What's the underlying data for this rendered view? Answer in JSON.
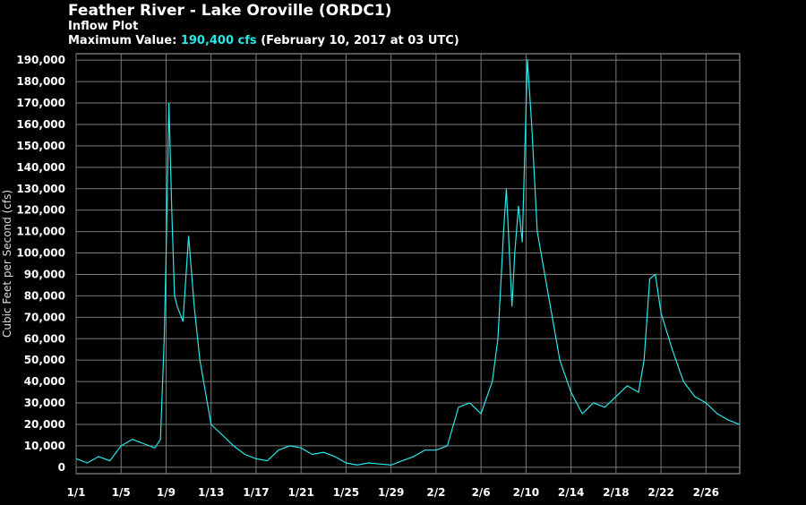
{
  "header": {
    "title": "Feather River - Lake Oroville (ORDC1)",
    "subtitle": "Inflow Plot",
    "max_label": "Maximum Value:",
    "max_value": "190,400 cfs",
    "max_when": "(February 10, 2017 at 03 UTC)"
  },
  "chart_data": {
    "type": "line",
    "title": "Feather River - Lake Oroville (ORDC1)",
    "subtitle": "Inflow Plot",
    "ylabel": "Cubic Feet per Second (cfs)",
    "xlabel": "",
    "ylim": [
      -3000,
      193000
    ],
    "xlim": [
      "2017-01-01",
      "2017-03-01"
    ],
    "grid": true,
    "line_color": "#26e8e8",
    "yticks": [
      "0",
      "10,000",
      "20,000",
      "30,000",
      "40,000",
      "50,000",
      "60,000",
      "70,000",
      "80,000",
      "90,000",
      "100,000",
      "110,000",
      "120,000",
      "130,000",
      "140,000",
      "150,000",
      "160,000",
      "170,000",
      "180,000",
      "190,000"
    ],
    "xticks": [
      "1/1",
      "1/5",
      "1/9",
      "1/13",
      "1/17",
      "1/21",
      "1/25",
      "1/29",
      "2/2",
      "2/6",
      "2/10",
      "2/14",
      "2/18",
      "2/22",
      "2/26"
    ],
    "series": [
      {
        "values": [
          [
            "2017-01-01",
            4000
          ],
          [
            "2017-01-02",
            2000
          ],
          [
            "2017-01-03",
            5000
          ],
          [
            "2017-01-04",
            3000
          ],
          [
            "2017-01-05",
            10000
          ],
          [
            "2017-01-06",
            13000
          ],
          [
            "2017-01-07",
            11000
          ],
          [
            "2017-01-08",
            9000
          ],
          [
            "2017-01-08T12",
            13000
          ],
          [
            "2017-01-08T20",
            60000
          ],
          [
            "2017-01-09",
            100000
          ],
          [
            "2017-01-09T06",
            170000
          ],
          [
            "2017-01-09T12",
            120000
          ],
          [
            "2017-01-09T18",
            80000
          ],
          [
            "2017-01-10",
            75000
          ],
          [
            "2017-01-10T12",
            68000
          ],
          [
            "2017-01-11",
            108000
          ],
          [
            "2017-01-11T12",
            75000
          ],
          [
            "2017-01-12",
            50000
          ],
          [
            "2017-01-13",
            20000
          ],
          [
            "2017-01-14",
            15000
          ],
          [
            "2017-01-15",
            10000
          ],
          [
            "2017-01-16",
            6000
          ],
          [
            "2017-01-17",
            4000
          ],
          [
            "2017-01-18",
            3000
          ],
          [
            "2017-01-19",
            8000
          ],
          [
            "2017-01-20",
            10000
          ],
          [
            "2017-01-21",
            9000
          ],
          [
            "2017-01-22",
            6000
          ],
          [
            "2017-01-23",
            7000
          ],
          [
            "2017-01-24",
            5000
          ],
          [
            "2017-01-25",
            2000
          ],
          [
            "2017-01-26",
            1000
          ],
          [
            "2017-01-27",
            2000
          ],
          [
            "2017-01-28",
            1500
          ],
          [
            "2017-01-29",
            1000
          ],
          [
            "2017-01-30",
            3000
          ],
          [
            "2017-01-31",
            5000
          ],
          [
            "2017-02-01",
            8000
          ],
          [
            "2017-02-02",
            8000
          ],
          [
            "2017-02-03",
            10000
          ],
          [
            "2017-02-04",
            28000
          ],
          [
            "2017-02-05",
            30000
          ],
          [
            "2017-02-06",
            25000
          ],
          [
            "2017-02-07",
            40000
          ],
          [
            "2017-02-07T12",
            60000
          ],
          [
            "2017-02-08",
            110000
          ],
          [
            "2017-02-08T06",
            130000
          ],
          [
            "2017-02-08T18",
            75000
          ],
          [
            "2017-02-09",
            100000
          ],
          [
            "2017-02-09T08",
            122000
          ],
          [
            "2017-02-09T16",
            105000
          ],
          [
            "2017-02-10T03",
            190400
          ],
          [
            "2017-02-10T12",
            160000
          ],
          [
            "2017-02-11",
            110000
          ],
          [
            "2017-02-12",
            80000
          ],
          [
            "2017-02-13",
            50000
          ],
          [
            "2017-02-14",
            35000
          ],
          [
            "2017-02-15",
            25000
          ],
          [
            "2017-02-16",
            30000
          ],
          [
            "2017-02-17",
            28000
          ],
          [
            "2017-02-18",
            33000
          ],
          [
            "2017-02-19",
            38000
          ],
          [
            "2017-02-20",
            35000
          ],
          [
            "2017-02-20T12",
            50000
          ],
          [
            "2017-02-21",
            88000
          ],
          [
            "2017-02-21T12",
            90000
          ],
          [
            "2017-02-22",
            72000
          ],
          [
            "2017-02-23",
            55000
          ],
          [
            "2017-02-24",
            40000
          ],
          [
            "2017-02-25",
            33000
          ],
          [
            "2017-02-26",
            30000
          ],
          [
            "2017-02-27",
            25000
          ],
          [
            "2017-02-28",
            22000
          ],
          [
            "2017-03-01",
            20000
          ]
        ]
      }
    ]
  }
}
